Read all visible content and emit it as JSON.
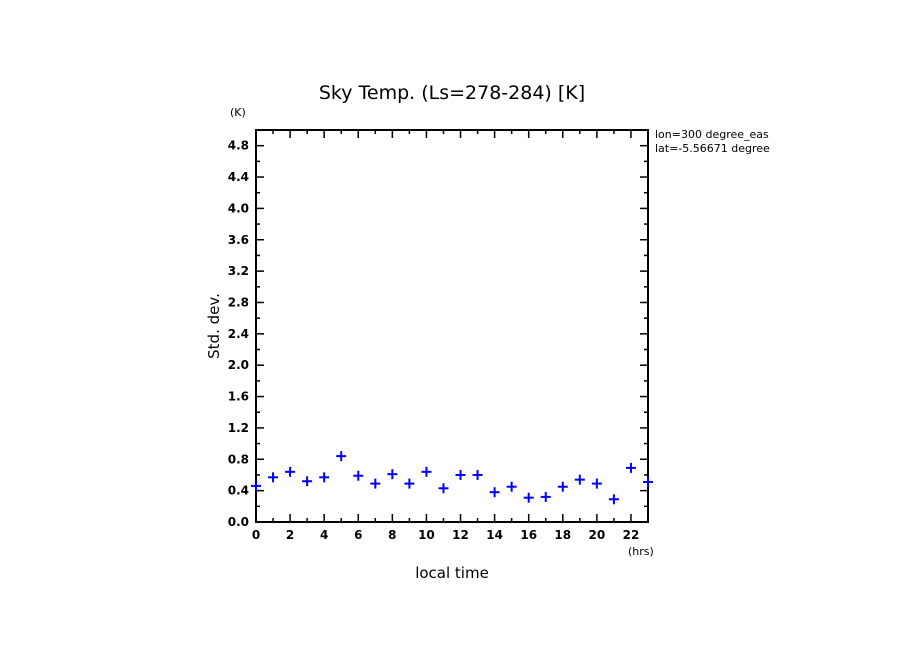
{
  "chart_data": {
    "type": "scatter",
    "title": "Sky Temp. (Ls=278-284) [K]",
    "xlabel": "local time",
    "ylabel": "Std. dev.",
    "x_unit": "(hrs)",
    "y_unit": "(K)",
    "xlim": [
      0,
      23
    ],
    "ylim": [
      0,
      5.0
    ],
    "x_ticks": [
      0,
      2,
      4,
      6,
      8,
      10,
      12,
      14,
      16,
      18,
      20,
      22
    ],
    "y_ticks": [
      "0.0",
      "0.4",
      "0.8",
      "1.2",
      "1.6",
      "2.0",
      "2.4",
      "2.8",
      "3.2",
      "3.6",
      "4.0",
      "4.4",
      "4.8"
    ],
    "grid": false,
    "annotations": [
      "lon=300 degree_eas",
      "lat=-5.56671 degree"
    ],
    "series": [
      {
        "name": "Std. dev.",
        "color": "#0000ff",
        "marker": "plus",
        "x": [
          0,
          1,
          2,
          3,
          4,
          5,
          6,
          7,
          8,
          9,
          10,
          11,
          12,
          13,
          14,
          15,
          16,
          17,
          18,
          19,
          20,
          21,
          22,
          23
        ],
        "y": [
          0.46,
          0.57,
          0.64,
          0.52,
          0.57,
          0.84,
          0.59,
          0.49,
          0.61,
          0.49,
          0.64,
          0.43,
          0.6,
          0.6,
          0.38,
          0.45,
          0.31,
          0.32,
          0.45,
          0.54,
          0.49,
          0.29,
          0.69,
          0.51
        ]
      }
    ]
  }
}
